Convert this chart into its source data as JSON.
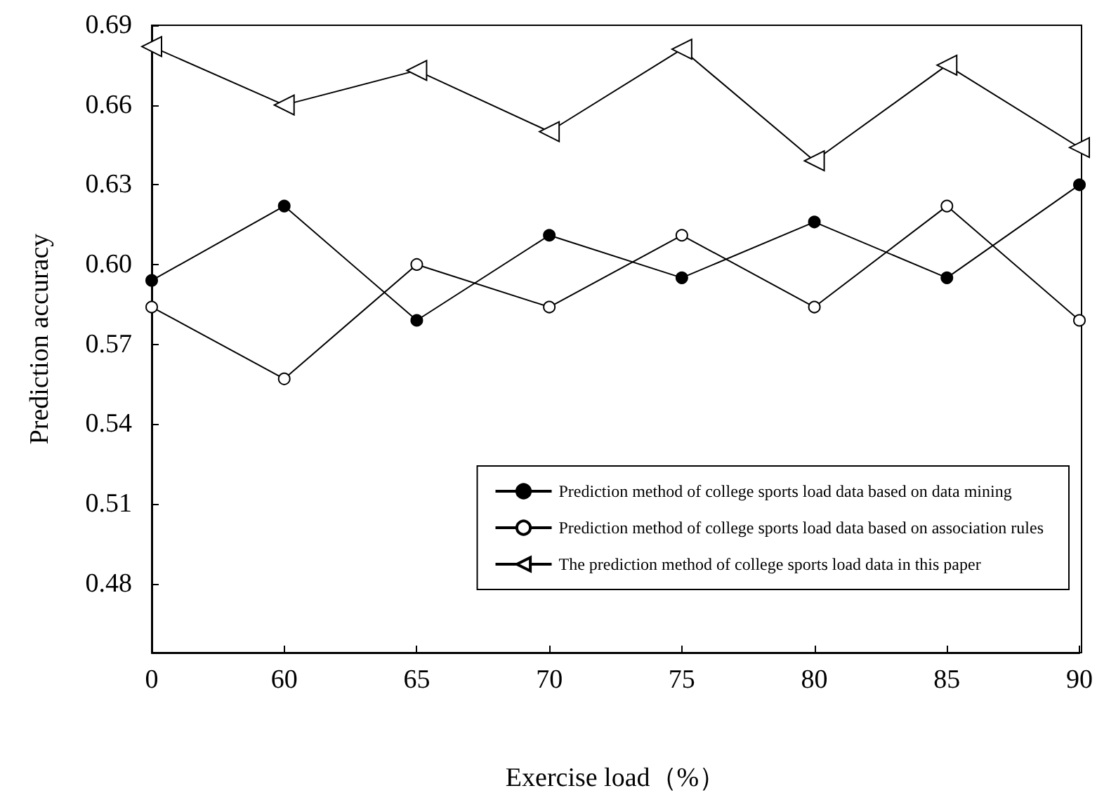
{
  "chart_data": {
    "type": "line",
    "xlabel": "Exercise load（%）",
    "ylabel": "Prediction accuracy",
    "categories": [
      "0",
      "60",
      "65",
      "70",
      "75",
      "80",
      "85",
      "90"
    ],
    "series": [
      {
        "name": "Prediction method of college sports load data based on data mining",
        "color": "#000000",
        "marker": "circle",
        "values": [
          0.594,
          0.622,
          0.579,
          0.611,
          0.595,
          0.616,
          0.595,
          0.63
        ]
      },
      {
        "name": "Prediction method of college sports load data based on association rules",
        "color": "#ffffff",
        "marker": "circle",
        "values": [
          0.584,
          0.557,
          0.6,
          0.584,
          0.611,
          0.584,
          0.622,
          0.579
        ]
      },
      {
        "name": "The prediction method of college sports load data in this paper",
        "color": "#ffffff",
        "marker": "triangle",
        "values": [
          0.682,
          0.66,
          0.673,
          0.65,
          0.681,
          0.639,
          0.675,
          0.644
        ]
      }
    ],
    "ylim": [
      0.454,
      0.69
    ],
    "yticks": [
      0.48,
      0.51,
      0.54,
      0.57,
      {
        "value": 0.6,
        "label": "0.60"
      },
      0.63,
      0.66,
      0.69
    ],
    "grid": false,
    "legend": "bottom right",
    "line_style": "solid"
  }
}
